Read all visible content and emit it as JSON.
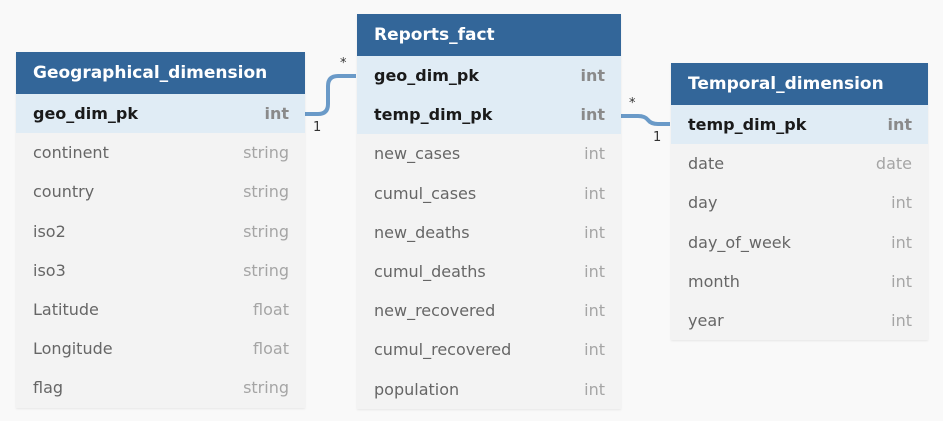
{
  "tables": {
    "geo": {
      "name": "Geographical_dimension",
      "columns": [
        {
          "name": "geo_dim_pk",
          "type": "int",
          "pk": true
        },
        {
          "name": "continent",
          "type": "string"
        },
        {
          "name": "country",
          "type": "string"
        },
        {
          "name": "iso2",
          "type": "string"
        },
        {
          "name": "iso3",
          "type": "string"
        },
        {
          "name": "Latitude",
          "type": "float"
        },
        {
          "name": "Longitude",
          "type": "float"
        },
        {
          "name": "flag",
          "type": "string"
        }
      ]
    },
    "fact": {
      "name": "Reports_fact",
      "columns": [
        {
          "name": "geo_dim_pk",
          "type": "int",
          "pk": true
        },
        {
          "name": "temp_dim_pk",
          "type": "int",
          "pk": true
        },
        {
          "name": "new_cases",
          "type": "int"
        },
        {
          "name": "cumul_cases",
          "type": "int"
        },
        {
          "name": "new_deaths",
          "type": "int"
        },
        {
          "name": "cumul_deaths",
          "type": "int"
        },
        {
          "name": "new_recovered",
          "type": "int"
        },
        {
          "name": "cumul_recovered",
          "type": "int"
        },
        {
          "name": "population",
          "type": "int"
        }
      ]
    },
    "temporal": {
      "name": "Temporal_dimension",
      "columns": [
        {
          "name": "temp_dim_pk",
          "type": "int",
          "pk": true
        },
        {
          "name": "date",
          "type": "date"
        },
        {
          "name": "day",
          "type": "int"
        },
        {
          "name": "day_of_week",
          "type": "int"
        },
        {
          "name": "month",
          "type": "int"
        },
        {
          "name": "year",
          "type": "int"
        }
      ]
    }
  },
  "relationships": [
    {
      "from_table": "Geographical_dimension",
      "from_column": "geo_dim_pk",
      "from_card": "1",
      "to_table": "Reports_fact",
      "to_column": "geo_dim_pk",
      "to_card": "*"
    },
    {
      "from_table": "Temporal_dimension",
      "from_column": "temp_dim_pk",
      "from_card": "1",
      "to_table": "Reports_fact",
      "to_column": "temp_dim_pk",
      "to_card": "*"
    }
  ],
  "colors": {
    "header": "#336699",
    "pk_row": "#e0ecf5",
    "body": "#f3f3f3",
    "connector": "#6a9ac8"
  }
}
